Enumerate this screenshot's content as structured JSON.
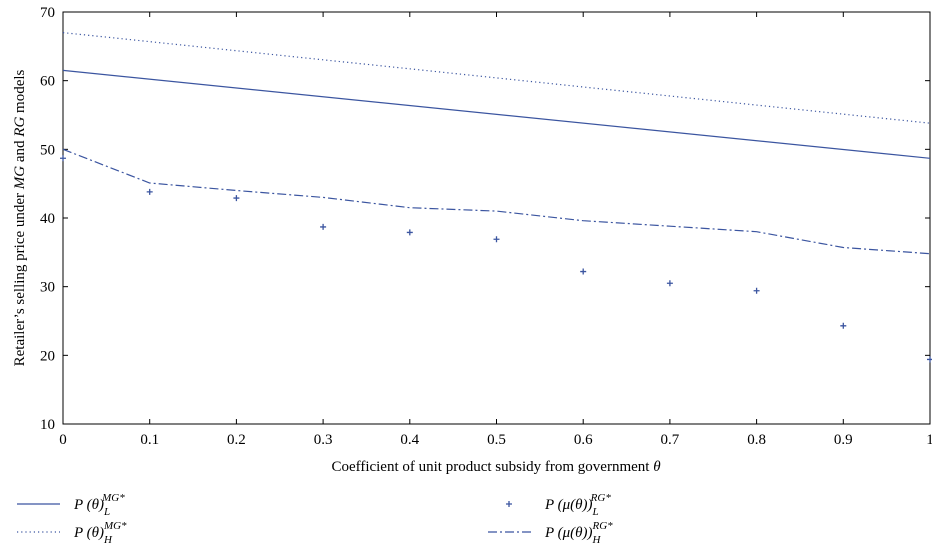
{
  "chart_data": {
    "type": "line",
    "title": "",
    "xlabel": "Coefficient of unit product subsidy from government θ",
    "ylabel": "Retailer’s selling price under MG and RG models",
    "xlim": [
      0,
      1
    ],
    "ylim": [
      10,
      70
    ],
    "x_ticks": [
      0,
      0.1,
      0.2,
      0.3,
      0.4,
      0.5,
      0.6,
      0.7,
      0.8,
      0.9,
      1
    ],
    "x_tick_labels": [
      "0",
      "0.1",
      "0.2",
      "0.3",
      "0.4",
      "0.5",
      "0.6",
      "0.7",
      "0.8",
      "0.9",
      "1"
    ],
    "y_ticks": [
      10,
      20,
      30,
      40,
      50,
      60,
      70
    ],
    "y_tick_labels": [
      "10",
      "20",
      "30",
      "40",
      "50",
      "60",
      "70"
    ],
    "grid": false,
    "legend_position": "bottom",
    "line_color": "#3b55a0",
    "series": [
      {
        "name": "P (θ)L MG*",
        "style": "solid",
        "x": [
          0,
          1
        ],
        "values": [
          61.5,
          48.7
        ]
      },
      {
        "name": "P (θ)H MG*",
        "style": "dotted",
        "x": [
          0,
          1
        ],
        "values": [
          67.0,
          53.8
        ]
      },
      {
        "name": "P (μ(θ))L RG*",
        "style": "marker-plus",
        "x": [
          0,
          0.1,
          0.2,
          0.3,
          0.4,
          0.5,
          0.6,
          0.7,
          0.8,
          0.9,
          1
        ],
        "values": [
          48.7,
          43.8,
          42.9,
          38.7,
          37.9,
          36.9,
          32.2,
          30.5,
          29.4,
          24.3,
          19.4
        ]
      },
      {
        "name": "P (μ(θ))H RG*",
        "style": "dash-dot",
        "x": [
          0,
          0.1,
          0.2,
          0.3,
          0.4,
          0.5,
          0.6,
          0.7,
          0.8,
          0.9,
          1
        ],
        "values": [
          50.0,
          45.1,
          44.0,
          43.0,
          41.5,
          41.0,
          39.6,
          38.8,
          38.0,
          35.7,
          34.8
        ]
      }
    ],
    "legend": [
      {
        "main": "P (θ)",
        "sub": "L",
        "sup": "MG*"
      },
      {
        "main": "P (θ)",
        "sub": "H",
        "sup": "MG*"
      },
      {
        "main": "P (μ(θ))",
        "sub": "L",
        "sup": "RG*"
      },
      {
        "main": "P (μ(θ))",
        "sub": "H",
        "sup": "RG*"
      }
    ]
  }
}
